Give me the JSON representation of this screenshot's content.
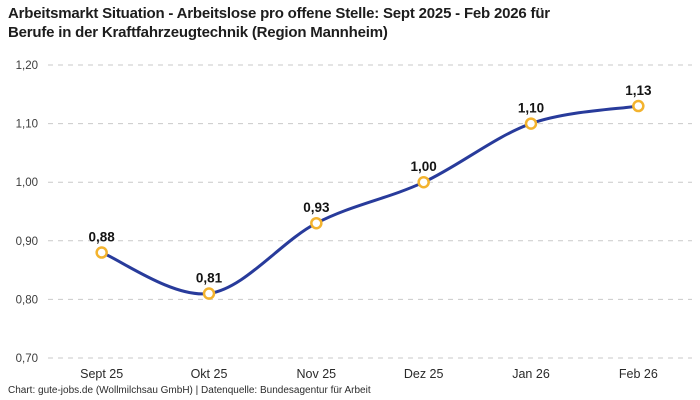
{
  "header": {
    "title_lines": [
      "Arbeitsmarkt Situation - Arbeitslose pro offene Stelle: Sept 2025 - Feb 2026 für",
      "Berufe in der Kraftfahrzeugtechnik (Region Mannheim)"
    ]
  },
  "footer": {
    "text": "Chart: gute-jobs.de (Wollmilchsau GmbH) | Datenquelle: Bundesagentur für Arbeit"
  },
  "chart_data": {
    "type": "line",
    "title": "Arbeitsmarkt Situation - Arbeitslose pro offene Stelle: Sept 2025 - Feb 2026 für Berufe in der Kraftfahrzeugtechnik (Region Mannheim)",
    "categories": [
      "Sept 25",
      "Okt 25",
      "Nov 25",
      "Dez 25",
      "Jan 26",
      "Feb 26"
    ],
    "values": [
      0.88,
      0.81,
      0.93,
      1.0,
      1.1,
      1.13
    ],
    "value_labels": [
      "0,88",
      "0,81",
      "0,93",
      "1,00",
      "1,10",
      "1,13"
    ],
    "ylim": [
      0.7,
      1.2
    ],
    "ytick_values": [
      0.7,
      0.8,
      0.9,
      1.0,
      1.1,
      1.2
    ],
    "ytick_labels": [
      "0,70",
      "0,80",
      "0,90",
      "1,00",
      "1,10",
      "1,20"
    ],
    "xlabel": "",
    "ylabel": "",
    "grid": "dashed-horizontal",
    "legend": "none",
    "curve": "smooth",
    "colors": {
      "line": "#283b9b",
      "marker_ring": "#f3b32e",
      "marker_fill": "#ffffff",
      "gridline": "#c9c9c9",
      "tick_text": "#3c3c3c",
      "value_label_text": "#141414",
      "title_text": "#1d1d1d",
      "footer_text": "#2b2b2b"
    }
  }
}
